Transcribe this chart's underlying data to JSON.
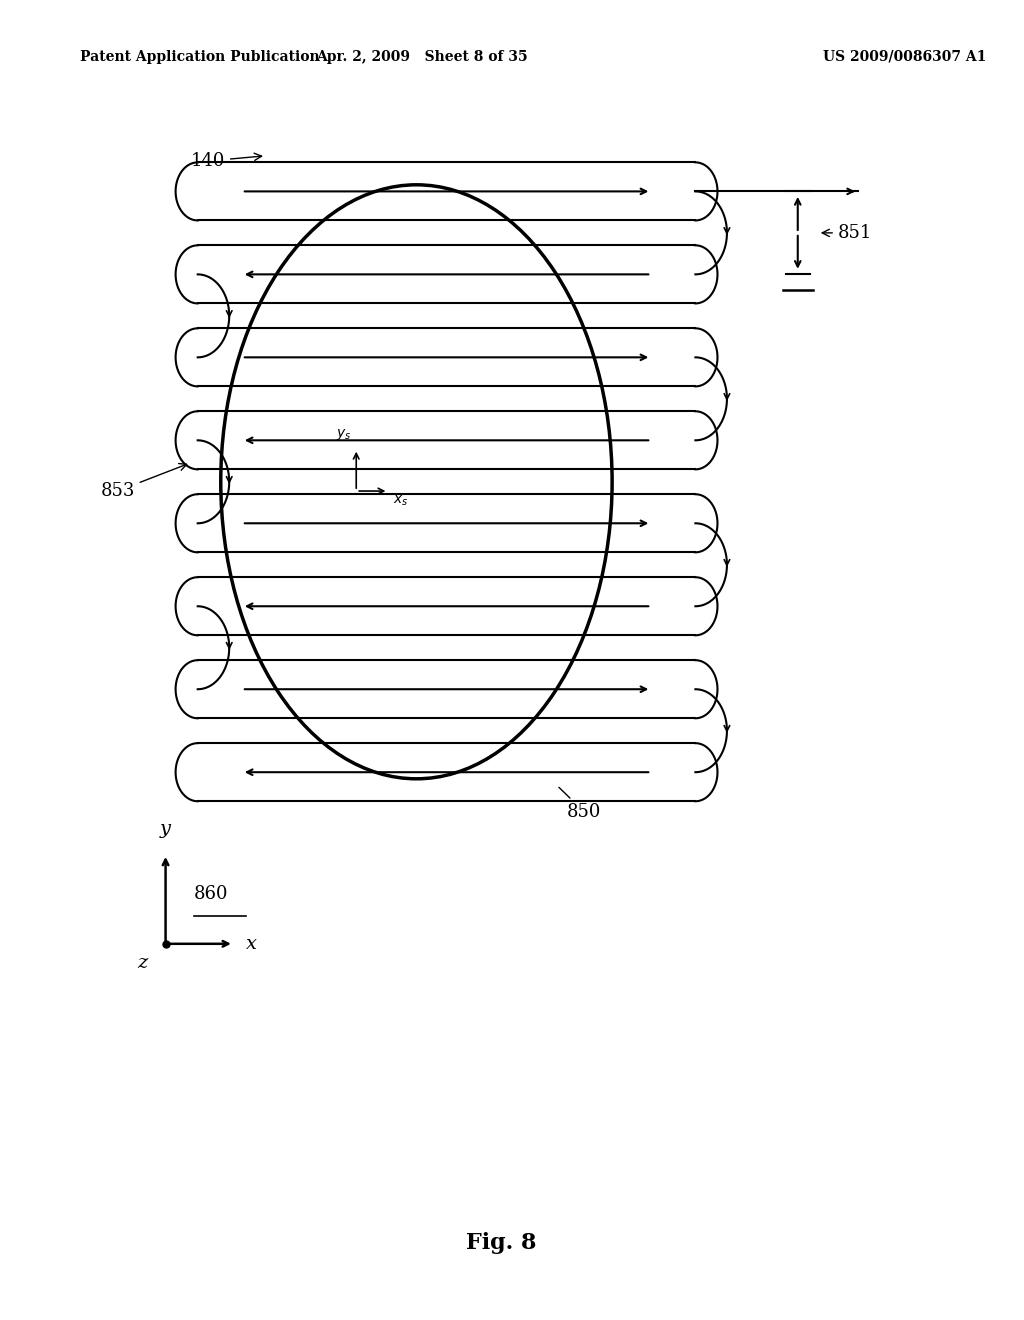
{
  "header_left": "Patent Application Publication",
  "header_mid": "Apr. 2, 2009   Sheet 8 of 35",
  "header_right": "US 2009/0086307 A1",
  "fig_label": "Fig. 8",
  "label_140": "140",
  "label_853": "853",
  "label_850": "850",
  "label_851": "851",
  "label_860": "860",
  "bg_color": "#ffffff",
  "line_color": "#000000"
}
